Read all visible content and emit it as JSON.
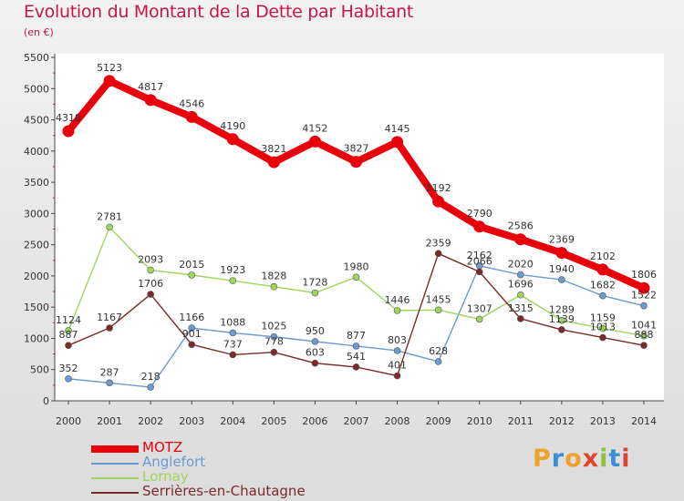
{
  "header": {
    "title": "Evolution du Montant de la Dette par Habitant",
    "unit": "(en €)"
  },
  "logo": {
    "text": "Proxiti",
    "colors": [
      "#f0a12a",
      "#3c8fd6",
      "#f0a12a",
      "#e0442d",
      "#8cc43c",
      "#3c8fd6",
      "#e0442d"
    ]
  },
  "chart_data": {
    "type": "line",
    "title": "Evolution du Montant de la Dette par Habitant",
    "ylabel": "(en €)",
    "xlabel": "",
    "ylim": [
      0,
      5500
    ],
    "yticks": [
      0,
      500,
      1000,
      1500,
      2000,
      2500,
      3000,
      3500,
      4000,
      4500,
      5000,
      5500
    ],
    "grid": false,
    "legend": "bottom-left",
    "x": [
      "2000",
      "2001",
      "2002",
      "2003",
      "2004",
      "2005",
      "2006",
      "2007",
      "2008",
      "2009",
      "2010",
      "2011",
      "2012",
      "2013",
      "2014"
    ],
    "series": [
      {
        "name": "MOTZ",
        "color": "#e8000b",
        "values": [
          4318,
          5123,
          4817,
          4546,
          4190,
          3821,
          4152,
          3827,
          4145,
          3192,
          2790,
          2586,
          2369,
          2102,
          1806
        ]
      },
      {
        "name": "Anglefort",
        "color": "#6b9bd0",
        "values": [
          352,
          287,
          218,
          1166,
          1088,
          1025,
          950,
          877,
          803,
          628,
          2162,
          2020,
          1940,
          1682,
          1522
        ]
      },
      {
        "name": "Lornay",
        "color": "#9dd55f",
        "values": [
          1124,
          2781,
          2093,
          2015,
          1923,
          1828,
          1728,
          1980,
          1446,
          1455,
          1307,
          1696,
          1289,
          1159,
          1041
        ]
      },
      {
        "name": "Serrières-en-Chautagne",
        "color": "#7b2a2a",
        "values": [
          887,
          1167,
          1706,
          901,
          737,
          778,
          603,
          541,
          401,
          2359,
          2066,
          1315,
          1139,
          1013,
          888
        ]
      }
    ]
  }
}
